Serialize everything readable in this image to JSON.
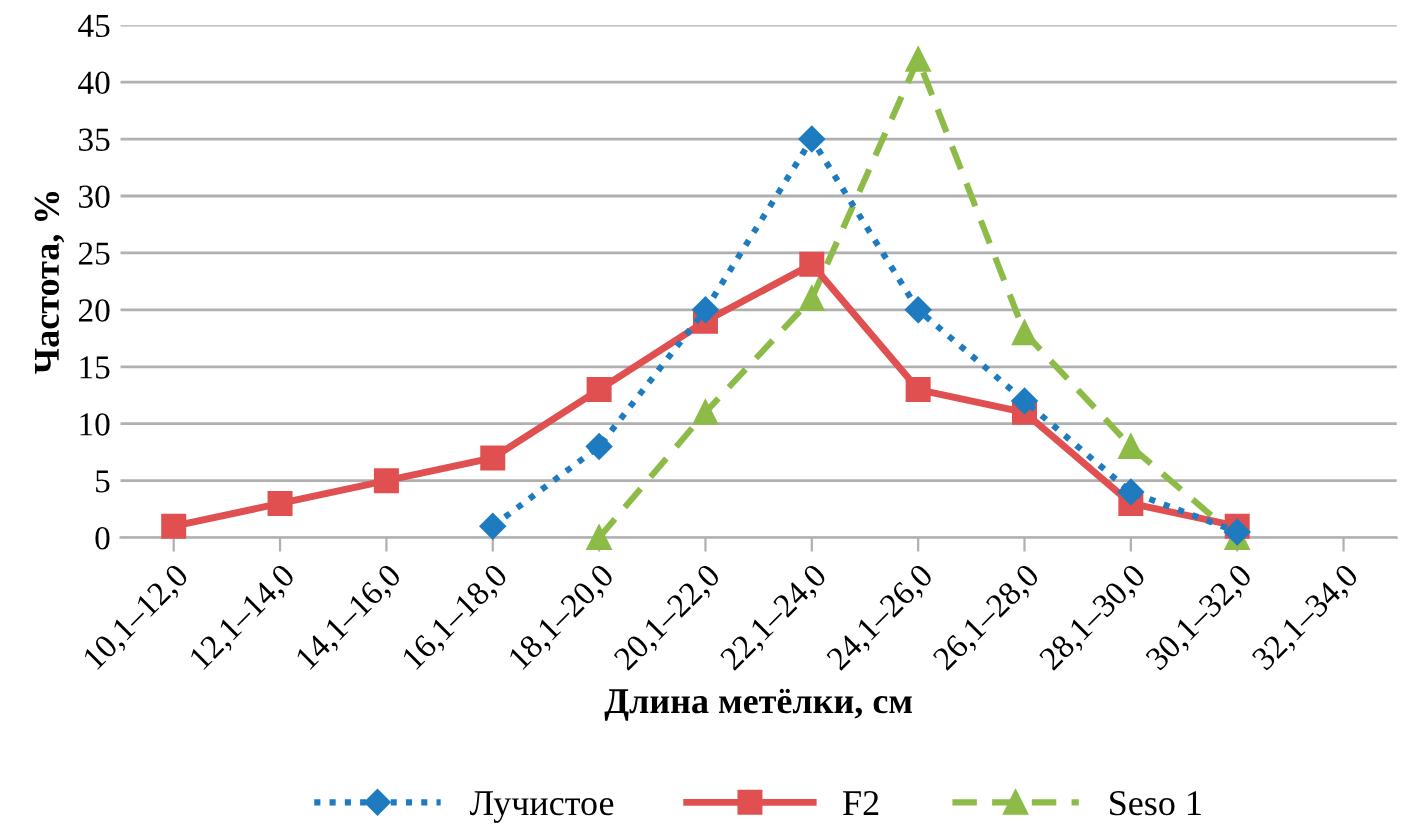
{
  "chart_data": {
    "type": "line",
    "xlabel": "Длина метёлки, см",
    "ylabel": "Частота, %",
    "categories": [
      "10,1–12,0",
      "12,1–14,0",
      "14,1–16,0",
      "16,1–18,0",
      "18,1–20,0",
      "20,1–22,0",
      "22,1–24,0",
      "24,1–26,0",
      "26,1–28,0",
      "28,1–30,0",
      "30,1–32,0",
      "32,1–34,0"
    ],
    "series": [
      {
        "name": "Лучистое",
        "color": "#1f7bc0",
        "marker": "diamond",
        "line_style": "dotted",
        "values": [
          null,
          null,
          null,
          1,
          8,
          20,
          35,
          20,
          12,
          4,
          0.5,
          null
        ]
      },
      {
        "name": "F2",
        "color": "#e05050",
        "marker": "square",
        "line_style": "solid",
        "values": [
          1,
          3,
          5,
          7,
          13,
          19,
          24,
          13,
          11,
          3,
          1,
          null
        ]
      },
      {
        "name": "Seso 1",
        "color": "#8cbb48",
        "marker": "triangle",
        "line_style": "dashed",
        "values": [
          null,
          null,
          null,
          null,
          0,
          11,
          21,
          42,
          18,
          8,
          0,
          null
        ]
      }
    ],
    "ylim": [
      0,
      45
    ],
    "yticks": [
      0,
      5,
      10,
      15,
      20,
      25,
      30,
      35,
      40,
      45
    ],
    "grid": "y",
    "legend": "bottom"
  }
}
